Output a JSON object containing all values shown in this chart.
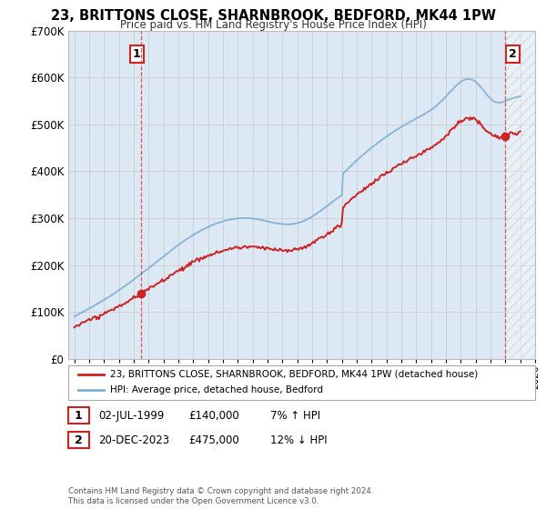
{
  "title": "23, BRITTONS CLOSE, SHARNBROOK, BEDFORD, MK44 1PW",
  "subtitle": "Price paid vs. HM Land Registry's House Price Index (HPI)",
  "legend_line1": "23, BRITTONS CLOSE, SHARNBROOK, BEDFORD, MK44 1PW (detached house)",
  "legend_line2": "HPI: Average price, detached house, Bedford",
  "annotation1_date": "02-JUL-1999",
  "annotation1_price": "£140,000",
  "annotation1_hpi": "7% ↑ HPI",
  "annotation2_date": "20-DEC-2023",
  "annotation2_price": "£475,000",
  "annotation2_hpi": "12% ↓ HPI",
  "footnote": "Contains HM Land Registry data © Crown copyright and database right 2024.\nThis data is licensed under the Open Government Licence v3.0.",
  "sale1_year": 1999.5,
  "sale1_value": 140000,
  "sale2_year": 2023.97,
  "sale2_value": 475000,
  "hpi_color": "#7bafd4",
  "price_color": "#cc2222",
  "bg_color": "#ffffff",
  "grid_color": "#cccccc",
  "plot_bg_color": "#dde8f5",
  "ylim_min": 0,
  "ylim_max": 700000,
  "xlim_min": 1994.6,
  "xlim_max": 2026.0
}
